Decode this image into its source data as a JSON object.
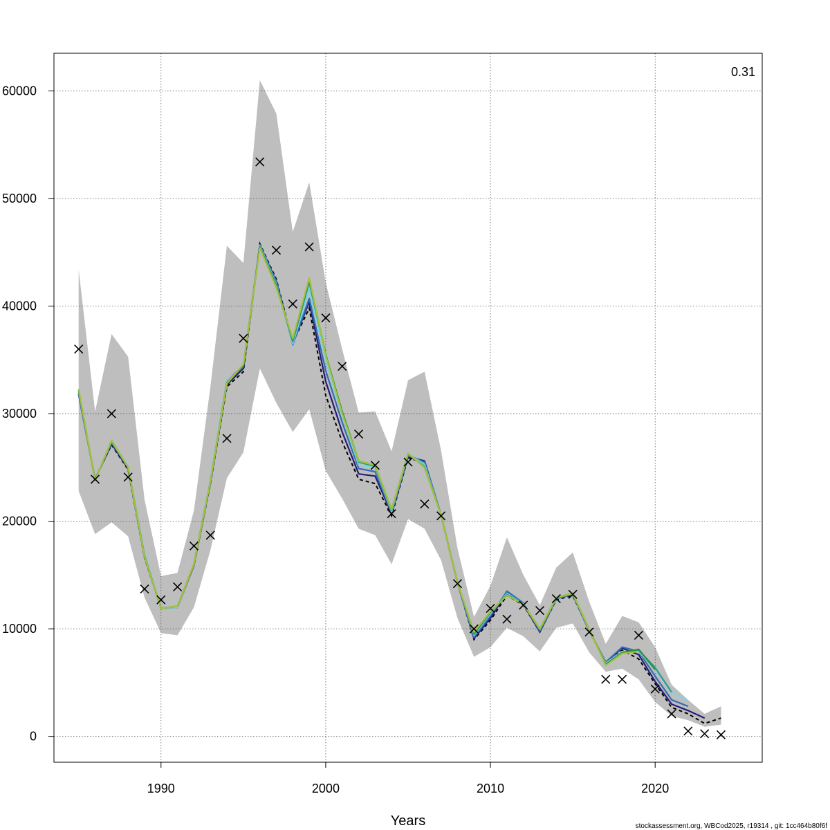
{
  "chart_data": {
    "type": "line",
    "title": "",
    "xlabel": "Years",
    "ylabel": "",
    "annotation": "0.31",
    "footer": "stockassessment.org, WBCod2025, r19314 , git: 1cc464b80f6f",
    "xlim": [
      1983.5,
      2026.5
    ],
    "ylim": [
      -2400,
      63500
    ],
    "grid": true,
    "x_ticks": [
      1990,
      2000,
      2010,
      2020
    ],
    "y_ticks": [
      0,
      10000,
      20000,
      30000,
      40000,
      50000,
      60000
    ],
    "y_tick_labels": [
      "0",
      "10000",
      "20000",
      "30000",
      "40000",
      "50000",
      "60000"
    ],
    "confidence_band": {
      "x": [
        1985,
        1986,
        1987,
        1988,
        1989,
        1990,
        1991,
        1992,
        1993,
        1994,
        1995,
        1996,
        1997,
        1998,
        1999,
        2000,
        2001,
        2002,
        2003,
        2004,
        2005,
        2006,
        2007,
        2008,
        2009,
        2010,
        2011,
        2012,
        2013,
        2014,
        2015,
        2016,
        2017,
        2018,
        2019,
        2020,
        2021,
        2022,
        2023,
        2024
      ],
      "upper": [
        43400,
        30200,
        37400,
        35300,
        22000,
        14900,
        15200,
        21000,
        32500,
        45600,
        44000,
        61000,
        57900,
        46900,
        51500,
        42200,
        36000,
        30100,
        30200,
        26500,
        33100,
        33900,
        26600,
        17500,
        11100,
        14000,
        18500,
        15000,
        12200,
        15700,
        17100,
        12500,
        8600,
        11200,
        10600,
        8300,
        4800,
        3400,
        2100,
        2800
      ],
      "lower": [
        22800,
        18800,
        19900,
        18600,
        12900,
        9600,
        9400,
        12000,
        17300,
        24000,
        26400,
        34200,
        31000,
        28300,
        30400,
        24700,
        22100,
        19300,
        18700,
        16000,
        20200,
        19300,
        16400,
        11000,
        7400,
        8300,
        10100,
        9300,
        7900,
        10100,
        10500,
        7800,
        6000,
        6300,
        5300,
        3200,
        1900,
        1500,
        900,
        1100
      ]
    },
    "observations": {
      "x": [
        1985,
        1986,
        1987,
        1988,
        1989,
        1990,
        1991,
        1992,
        1993,
        1994,
        1995,
        1996,
        1997,
        1998,
        1999,
        2000,
        2001,
        2002,
        2003,
        2004,
        2005,
        2006,
        2007,
        2008,
        2009,
        2010,
        2011,
        2012,
        2013,
        2014,
        2015,
        2016,
        2017,
        2018,
        2019,
        2020,
        2021,
        2022,
        2023,
        2024
      ],
      "y": [
        36000,
        23900,
        30000,
        24100,
        13700,
        12700,
        13900,
        17700,
        18700,
        27700,
        37000,
        53400,
        45200,
        40200,
        45500,
        38900,
        34400,
        28100,
        25200,
        20700,
        25500,
        21600,
        20500,
        14200,
        10000,
        11900,
        10900,
        12200,
        11700,
        12800,
        13200,
        9700,
        5300,
        5300,
        9400,
        4400,
        2100,
        500,
        250,
        150
      ]
    },
    "series": [
      {
        "color": "#000000",
        "dashed": true,
        "x": [
          1985,
          1986,
          1987,
          1988,
          1989,
          1990,
          1991,
          1992,
          1993,
          1994,
          1995,
          1996,
          1997,
          1998,
          1999,
          2000,
          2001,
          2002,
          2003,
          2004,
          2005,
          2006,
          2007,
          2008,
          2009,
          2010,
          2011,
          2012,
          2013,
          2014,
          2015,
          2016,
          2017,
          2018,
          2019,
          2020,
          2021,
          2022,
          2023,
          2024
        ],
        "y": [
          31800,
          23900,
          27100,
          24800,
          16600,
          11900,
          12000,
          15900,
          23500,
          32500,
          33900,
          45800,
          42500,
          36600,
          39800,
          31700,
          27400,
          23900,
          23500,
          20500,
          25900,
          25400,
          20600,
          14300,
          9000,
          10800,
          13100,
          12200,
          9700,
          12700,
          13100,
          9800,
          6800,
          8000,
          7200,
          4900,
          2700,
          2100,
          1200,
          1700
        ]
      },
      {
        "color": "#2a1a78",
        "dashed": false,
        "x": [
          1985,
          1986,
          1987,
          1988,
          1989,
          1990,
          1991,
          1992,
          1993,
          1994,
          1995,
          1996,
          1997,
          1998,
          1999,
          2000,
          2001,
          2002,
          2003,
          2004,
          2005,
          2006,
          2007,
          2008,
          2009,
          2010,
          2011,
          2012,
          2013,
          2014,
          2015,
          2016,
          2017,
          2018,
          2019,
          2020,
          2021,
          2022,
          2023
        ],
        "y": [
          31800,
          23900,
          27200,
          24900,
          16700,
          11900,
          12000,
          15900,
          23600,
          32700,
          34200,
          45700,
          42300,
          36500,
          40400,
          33000,
          28300,
          24400,
          24200,
          20700,
          26000,
          25600,
          20600,
          14300,
          9100,
          11000,
          13400,
          12300,
          9700,
          12800,
          13200,
          9800,
          6900,
          8200,
          7600,
          5100,
          3000,
          2400,
          1700
        ]
      },
      {
        "color": "#2f6db3",
        "dashed": false,
        "x": [
          1985,
          1986,
          1987,
          1988,
          1989,
          1990,
          1991,
          1992,
          1993,
          1994,
          1995,
          1996,
          1997,
          1998,
          1999,
          2000,
          2001,
          2002,
          2003,
          2004,
          2005,
          2006,
          2007,
          2008,
          2009,
          2010,
          2011,
          2012,
          2013,
          2014,
          2015,
          2016,
          2017,
          2018,
          2019,
          2020,
          2021,
          2022
        ],
        "y": [
          31900,
          23900,
          27300,
          25000,
          16800,
          11900,
          12000,
          16000,
          23800,
          33000,
          34500,
          45700,
          42300,
          36400,
          40700,
          34000,
          29200,
          24900,
          24600,
          20800,
          26100,
          25500,
          20600,
          14300,
          9200,
          11200,
          13500,
          12400,
          9800,
          12800,
          13200,
          9800,
          6900,
          8300,
          7900,
          5600,
          3400,
          2800
        ]
      },
      {
        "color": "#7fd3e0",
        "dashed": false,
        "x": [
          1985,
          1986,
          1987,
          1988,
          1989,
          1990,
          1991,
          1992,
          1993,
          1994,
          1995,
          1996,
          1997,
          1998,
          1999,
          2000,
          2001,
          2002,
          2003,
          2004,
          2005,
          2006,
          2007,
          2008,
          2009,
          2010,
          2011,
          2012,
          2013,
          2014,
          2015,
          2016,
          2017,
          2018,
          2019,
          2020,
          2021,
          2022
        ],
        "y": [
          32000,
          23800,
          27400,
          25100,
          16900,
          11900,
          12000,
          16000,
          23900,
          33000,
          34400,
          45600,
          42000,
          36500,
          41600,
          35000,
          29800,
          25200,
          25000,
          20900,
          26200,
          25300,
          20600,
          14300,
          9400,
          11400,
          13300,
          12300,
          9900,
          12800,
          13300,
          9900,
          6800,
          7900,
          7900,
          6200,
          4200,
          3300
        ]
      },
      {
        "color": "#2e9b8a",
        "dashed": false,
        "x": [
          1985,
          1986,
          1987,
          1988,
          1989,
          1990,
          1991,
          1992,
          1993,
          1994,
          1995,
          1996,
          1997,
          1998,
          1999,
          2000,
          2001,
          2002,
          2003,
          2004,
          2005,
          2006,
          2007,
          2008,
          2009,
          2010,
          2011,
          2012,
          2013,
          2014,
          2015,
          2016,
          2017,
          2018,
          2019,
          2020,
          2021
        ],
        "y": [
          32100,
          23800,
          27400,
          25000,
          16800,
          11900,
          12100,
          16000,
          23700,
          32900,
          34400,
          45500,
          41900,
          36700,
          42200,
          35500,
          30100,
          25500,
          25100,
          21000,
          26200,
          25100,
          20600,
          14300,
          9500,
          11500,
          13200,
          12300,
          9900,
          12800,
          13300,
          9900,
          6700,
          7800,
          8000,
          6400,
          4100
        ]
      },
      {
        "color": "#2f8f3a",
        "dashed": false,
        "x": [
          1985,
          1986,
          1987,
          1988,
          1989,
          1990,
          1991,
          1992,
          1993,
          1994,
          1995,
          1996,
          1997,
          1998,
          1999,
          2000,
          2001,
          2002,
          2003,
          2004,
          2005,
          2006,
          2007,
          2008,
          2009,
          2010,
          2011,
          2012,
          2013,
          2014,
          2015,
          2016,
          2017,
          2018,
          2019,
          2020
        ],
        "y": [
          32200,
          23800,
          27500,
          25000,
          16700,
          11900,
          12100,
          16000,
          23700,
          32800,
          34500,
          45500,
          41800,
          36900,
          42500,
          35500,
          30200,
          25600,
          25200,
          21100,
          26300,
          25000,
          20600,
          14300,
          9600,
          11600,
          13100,
          12300,
          10000,
          12900,
          13300,
          9900,
          6700,
          7800,
          8100,
          6200
        ]
      },
      {
        "color": "#a6c13a",
        "dashed": false,
        "x": [
          1985,
          1986,
          1987,
          1988,
          1989,
          1990,
          1991,
          1992,
          1993,
          1994,
          1995,
          1996,
          1997,
          1998,
          1999,
          2000,
          2001,
          2002,
          2003,
          2004,
          2005,
          2006,
          2007,
          2008,
          2009,
          2010,
          2011,
          2012,
          2013,
          2014,
          2015,
          2016,
          2017,
          2018,
          2019
        ],
        "y": [
          32300,
          23800,
          27500,
          25000,
          16700,
          11900,
          12100,
          16000,
          23700,
          32800,
          34600,
          45400,
          41700,
          37000,
          42600,
          35400,
          30000,
          25600,
          25200,
          21100,
          26300,
          25000,
          20600,
          14300,
          9700,
          11600,
          13100,
          12300,
          10000,
          12900,
          13300,
          9900,
          6600,
          7700,
          7900
        ]
      }
    ]
  }
}
